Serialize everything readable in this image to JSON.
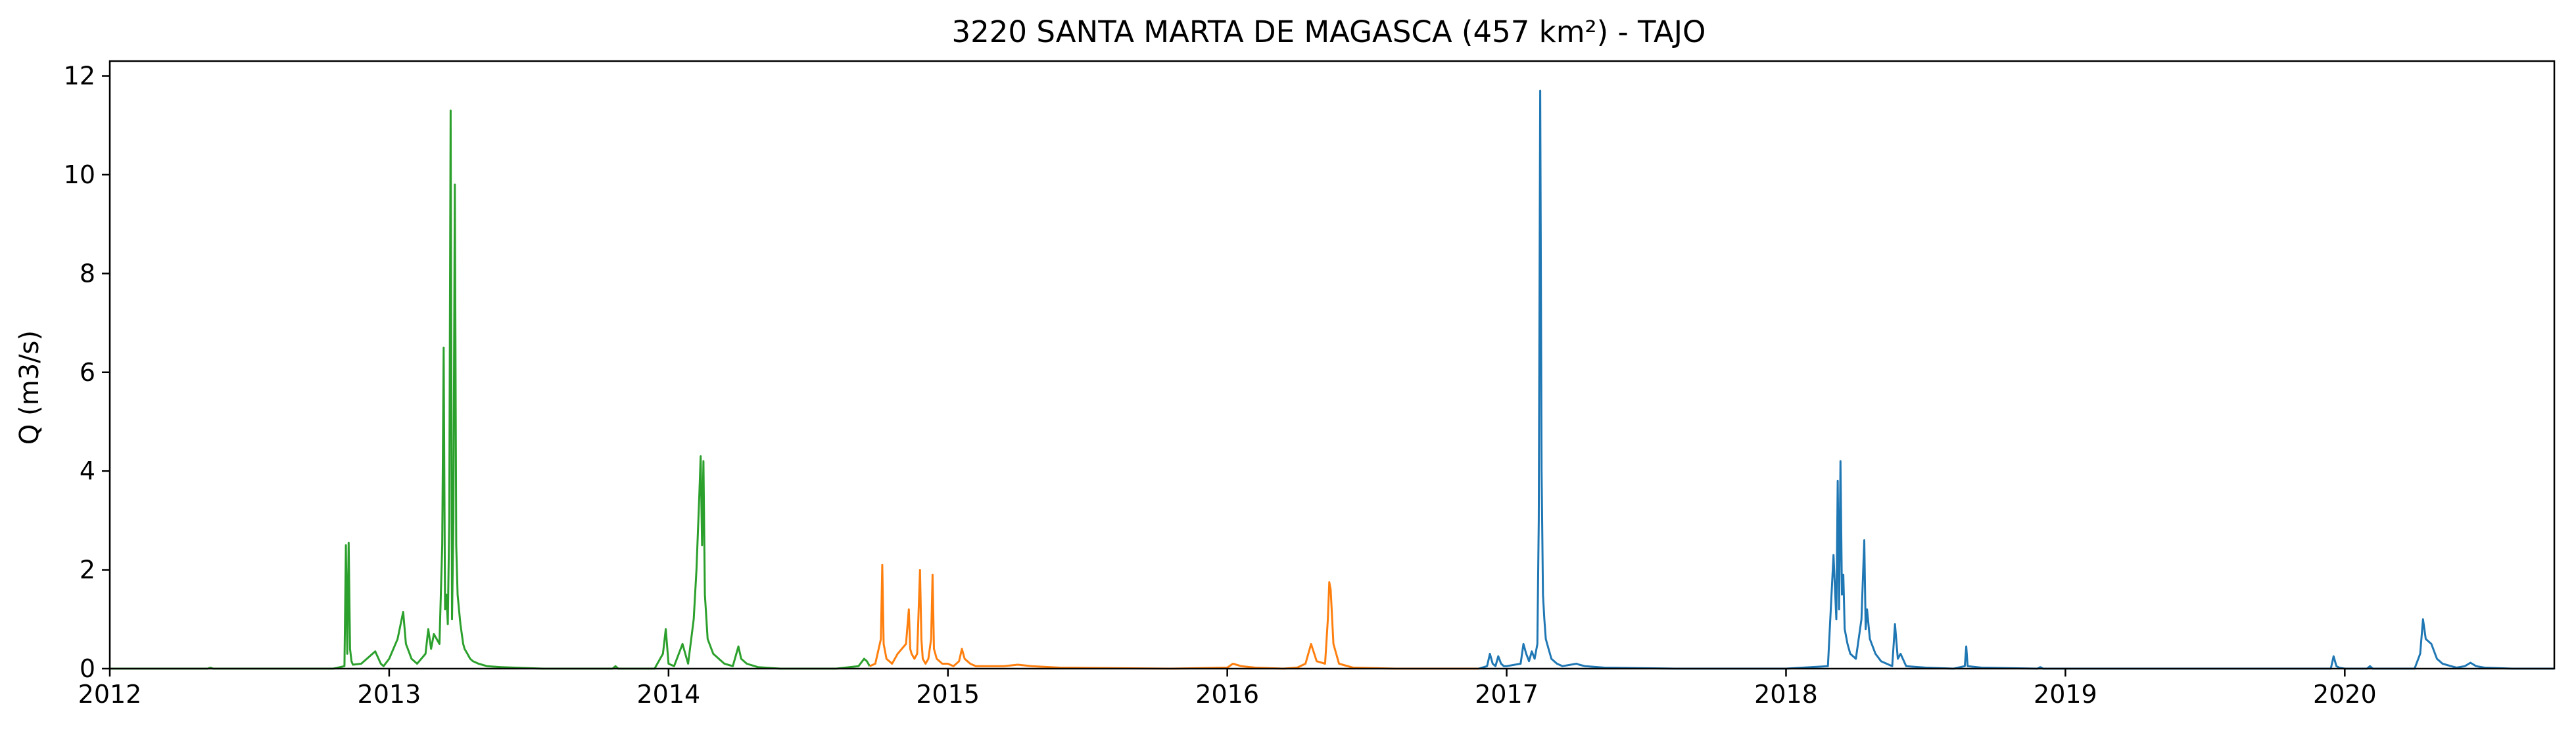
{
  "chart_data": {
    "type": "line",
    "title": "3220 SANTA MARTA DE MAGASCA (457 km²) - TAJO",
    "xlabel": "",
    "ylabel": "Q (m3/s)",
    "xlim": [
      2012.0,
      2020.75
    ],
    "ylim": [
      0,
      12.3
    ],
    "x_ticks": [
      2012,
      2013,
      2014,
      2015,
      2016,
      2017,
      2018,
      2019,
      2020
    ],
    "y_ticks": [
      0,
      2,
      4,
      6,
      8,
      10,
      12
    ],
    "grid": false,
    "legend": "none",
    "series_colors": [
      "#2ca02c",
      "#ff7f0e",
      "#1f77b4"
    ],
    "series": [
      {
        "color": "#2ca02c",
        "x": [
          2012.0,
          2012.35,
          2012.36,
          2012.37,
          2012.8,
          2012.84,
          2012.845,
          2012.85,
          2012.855,
          2012.86,
          2012.865,
          2012.87,
          2012.9,
          2012.95,
          2012.97,
          2012.98,
          2013.0,
          2013.03,
          2013.05,
          2013.06,
          2013.07,
          2013.08,
          2013.1,
          2013.13,
          2013.14,
          2013.15,
          2013.16,
          2013.18,
          2013.19,
          2013.195,
          2013.2,
          2013.205,
          2013.21,
          2013.215,
          2013.22,
          2013.225,
          2013.23,
          2013.235,
          2013.24,
          2013.245,
          2013.25,
          2013.255,
          2013.26,
          2013.265,
          2013.27,
          2013.28,
          2013.29,
          2013.3,
          2013.32,
          2013.35,
          2013.4,
          2013.45,
          2013.55,
          2013.8,
          2013.81,
          2013.82,
          2013.95,
          2013.98,
          2013.99,
          2014.0,
          2014.02,
          2014.05,
          2014.06,
          2014.07,
          2014.09,
          2014.1,
          2014.11,
          2014.115,
          2014.12,
          2014.125,
          2014.13,
          2014.14,
          2014.16,
          2014.18,
          2014.2,
          2014.23,
          2014.25,
          2014.26,
          2014.28,
          2014.32,
          2014.4,
          2014.6,
          2014.68,
          2014.7,
          2014.71,
          2014.72
        ],
        "y": [
          0,
          0,
          0.02,
          0,
          0,
          0.05,
          2.5,
          0.3,
          2.55,
          0.4,
          0.15,
          0.08,
          0.1,
          0.35,
          0.1,
          0.05,
          0.2,
          0.6,
          1.15,
          0.5,
          0.35,
          0.2,
          0.1,
          0.3,
          0.8,
          0.4,
          0.7,
          0.5,
          2.5,
          6.5,
          1.2,
          1.5,
          0.9,
          3.0,
          11.3,
          1.0,
          3.0,
          9.8,
          2.5,
          1.5,
          1.2,
          0.9,
          0.7,
          0.5,
          0.4,
          0.3,
          0.2,
          0.15,
          0.1,
          0.05,
          0.03,
          0.02,
          0,
          0,
          0.05,
          0,
          0,
          0.3,
          0.8,
          0.1,
          0.05,
          0.5,
          0.3,
          0.1,
          1.0,
          2.0,
          3.5,
          4.3,
          2.5,
          4.2,
          1.5,
          0.6,
          0.3,
          0.2,
          0.1,
          0.05,
          0.45,
          0.2,
          0.1,
          0.03,
          0,
          0,
          0.05,
          0.2,
          0.15,
          0.05
        ]
      },
      {
        "color": "#ff7f0e",
        "x": [
          2014.72,
          2014.74,
          2014.76,
          2014.765,
          2014.77,
          2014.78,
          2014.8,
          2014.82,
          2014.85,
          2014.86,
          2014.865,
          2014.87,
          2014.88,
          2014.89,
          2014.9,
          2014.905,
          2014.91,
          2014.92,
          2014.93,
          2014.94,
          2014.945,
          2014.95,
          2014.96,
          2014.98,
          2015.0,
          2015.02,
          2015.04,
          2015.05,
          2015.06,
          2015.08,
          2015.1,
          2015.2,
          2015.25,
          2015.3,
          2015.4,
          2015.8,
          2016.0,
          2016.02,
          2016.05,
          2016.1,
          2016.2,
          2016.25,
          2016.28,
          2016.3,
          2016.32,
          2016.35,
          2016.36,
          2016.365,
          2016.37,
          2016.38,
          2016.4,
          2016.45,
          2016.6,
          2016.9
        ],
        "y": [
          0.05,
          0.1,
          0.6,
          2.1,
          0.5,
          0.2,
          0.1,
          0.3,
          0.5,
          1.2,
          0.4,
          0.3,
          0.2,
          0.3,
          2.0,
          0.6,
          0.2,
          0.1,
          0.2,
          0.6,
          1.9,
          0.4,
          0.2,
          0.1,
          0.1,
          0.05,
          0.15,
          0.4,
          0.2,
          0.1,
          0.05,
          0.05,
          0.08,
          0.05,
          0.02,
          0,
          0.02,
          0.1,
          0.05,
          0.02,
          0,
          0.02,
          0.1,
          0.5,
          0.15,
          0.1,
          1.0,
          1.75,
          1.6,
          0.5,
          0.1,
          0.02,
          0,
          0
        ]
      },
      {
        "color": "#1f77b4",
        "x": [
          2016.9,
          2016.93,
          2016.94,
          2016.95,
          2016.96,
          2016.97,
          2016.98,
          2016.99,
          2017.0,
          2017.05,
          2017.06,
          2017.07,
          2017.08,
          2017.09,
          2017.1,
          2017.11,
          2017.115,
          2017.12,
          2017.125,
          2017.13,
          2017.135,
          2017.14,
          2017.15,
          2017.16,
          2017.18,
          2017.2,
          2017.25,
          2017.26,
          2017.28,
          2017.35,
          2017.6,
          2018.0,
          2018.15,
          2018.17,
          2018.18,
          2018.185,
          2018.19,
          2018.195,
          2018.2,
          2018.205,
          2018.21,
          2018.22,
          2018.23,
          2018.25,
          2018.27,
          2018.28,
          2018.285,
          2018.29,
          2018.3,
          2018.32,
          2018.34,
          2018.36,
          2018.38,
          2018.39,
          2018.4,
          2018.41,
          2018.43,
          2018.5,
          2018.55,
          2018.6,
          2018.64,
          2018.645,
          2018.65,
          2018.7,
          2018.9,
          2018.91,
          2018.92,
          2019.0,
          2019.5,
          2019.95,
          2019.96,
          2019.97,
          2019.98,
          2020.0,
          2020.08,
          2020.09,
          2020.1,
          2020.25,
          2020.27,
          2020.28,
          2020.29,
          2020.31,
          2020.33,
          2020.35,
          2020.38,
          2020.4,
          2020.43,
          2020.45,
          2020.47,
          2020.5,
          2020.6,
          2020.74,
          2020.75
        ],
        "y": [
          0,
          0.05,
          0.3,
          0.1,
          0.05,
          0.25,
          0.1,
          0.05,
          0.05,
          0.1,
          0.5,
          0.3,
          0.15,
          0.35,
          0.2,
          0.5,
          3.0,
          11.7,
          4.0,
          1.5,
          1.0,
          0.6,
          0.4,
          0.2,
          0.1,
          0.05,
          0.1,
          0.08,
          0.05,
          0.02,
          0,
          0,
          0.05,
          2.3,
          1.0,
          3.8,
          1.2,
          4.2,
          1.5,
          1.9,
          0.8,
          0.5,
          0.3,
          0.2,
          1.0,
          2.6,
          0.8,
          1.2,
          0.6,
          0.3,
          0.15,
          0.1,
          0.05,
          0.9,
          0.2,
          0.3,
          0.05,
          0.02,
          0.01,
          0,
          0.05,
          0.45,
          0.05,
          0.02,
          0,
          0.03,
          0,
          0,
          0,
          0,
          0.25,
          0.05,
          0.02,
          0,
          0,
          0.05,
          0,
          0,
          0.3,
          1.0,
          0.6,
          0.5,
          0.2,
          0.1,
          0.05,
          0.02,
          0.05,
          0.12,
          0.05,
          0.02,
          0,
          0,
          0
        ]
      }
    ]
  }
}
